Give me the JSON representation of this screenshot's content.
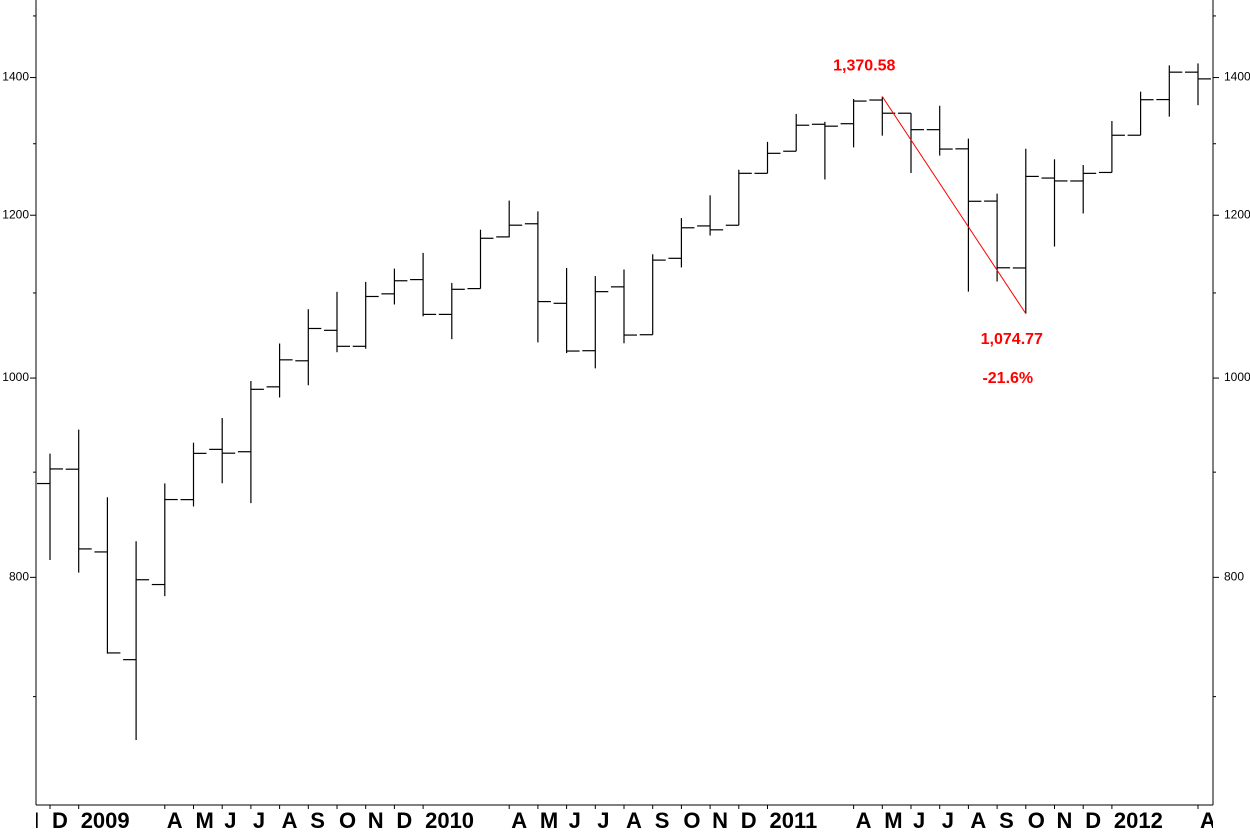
{
  "chart_data": {
    "type": "ohlc",
    "color": "#000000",
    "log_scale": true,
    "grid": false,
    "ylim": [
      620,
      1527
    ],
    "yticks": [
      800,
      1000,
      1200,
      1400
    ],
    "minor_yticks": [
      700,
      900,
      1100,
      1300,
      1500
    ],
    "x": [
      "2008-12",
      "2009-01",
      "2009-02",
      "2009-03",
      "2009-04",
      "2009-05",
      "2009-06",
      "2009-07",
      "2009-08",
      "2009-09",
      "2009-10",
      "2009-11",
      "2009-12",
      "2010-01",
      "2010-02",
      "2010-03",
      "2010-04",
      "2010-05",
      "2010-06",
      "2010-07",
      "2010-08",
      "2010-09",
      "2010-10",
      "2010-11",
      "2010-12",
      "2011-01",
      "2011-02",
      "2011-03",
      "2011-04",
      "2011-05",
      "2011-06",
      "2011-07",
      "2011-08",
      "2011-09",
      "2011-10",
      "2011-11",
      "2011-12",
      "2012-01",
      "2012-02",
      "2012-03",
      "2012-04"
    ],
    "open": [
      888.61,
      902.99,
      823.09,
      729.57,
      793.59,
      872.74,
      923.26,
      920.82,
      990.22,
      1019.52,
      1054.91,
      1036.18,
      1098.89,
      1116.56,
      1073.89,
      1105.36,
      1171.23,
      1188.58,
      1087.3,
      1031.1,
      1107.53,
      1049.72,
      1143.49,
      1185.71,
      1186.6,
      1257.62,
      1289.14,
      1328.64,
      1329.48,
      1365.21,
      1345.2,
      1320.64,
      1292.59,
      1219.12,
      1131.21,
      1251.0,
      1246.91,
      1258.86,
      1312.45,
      1365.9,
      1408.47
    ],
    "high": [
      918.85,
      943.85,
      875.01,
      832.98,
      888.7,
      930.17,
      956.23,
      996.68,
      1039.47,
      1080.15,
      1101.36,
      1113.69,
      1130.38,
      1150.45,
      1112.42,
      1180.69,
      1219.8,
      1205.13,
      1131.23,
      1120.95,
      1129.24,
      1148.67,
      1196.14,
      1227.08,
      1262.6,
      1302.67,
      1344.07,
      1332.28,
      1366.77,
      1370.58,
      1345.2,
      1356.48,
      1307.38,
      1229.29,
      1292.66,
      1277.55,
      1269.37,
      1333.47,
      1378.04,
      1419.15,
      1422.38
    ],
    "low": [
      815.69,
      804.3,
      734.52,
      666.79,
      783.32,
      866.1,
      888.86,
      869.32,
      978.51,
      991.97,
      1029.38,
      1033.38,
      1085.89,
      1071.59,
      1044.5,
      1105.36,
      1170.69,
      1040.78,
      1028.33,
      1010.91,
      1039.7,
      1049.72,
      1131.87,
      1173.0,
      1186.6,
      1257.62,
      1289.14,
      1249.05,
      1294.7,
      1311.8,
      1258.07,
      1282.86,
      1101.54,
      1114.22,
      1074.77,
      1158.66,
      1202.37,
      1258.86,
      1312.45,
      1340.03,
      1357.38
    ],
    "close": [
      903.25,
      825.88,
      735.09,
      797.87,
      872.81,
      919.14,
      919.32,
      987.48,
      1020.62,
      1057.08,
      1036.19,
      1095.63,
      1115.1,
      1073.87,
      1104.49,
      1169.43,
      1186.69,
      1089.41,
      1030.71,
      1101.6,
      1049.33,
      1141.2,
      1183.26,
      1180.55,
      1257.64,
      1286.12,
      1327.22,
      1325.83,
      1363.61,
      1345.2,
      1320.64,
      1292.28,
      1218.89,
      1131.42,
      1253.3,
      1246.96,
      1257.6,
      1312.41,
      1365.68,
      1408.47,
      1397.91
    ],
    "xticks": [
      {
        "value": "2008-11",
        "label": "N"
      },
      {
        "value": "2008-12",
        "label": "D"
      },
      {
        "value": "2009-01",
        "label": "2009"
      },
      {
        "value": "2009-04",
        "label": "A"
      },
      {
        "value": "2009-05",
        "label": "M"
      },
      {
        "value": "2009-06",
        "label": "J"
      },
      {
        "value": "2009-07",
        "label": "J"
      },
      {
        "value": "2009-08",
        "label": "A"
      },
      {
        "value": "2009-09",
        "label": "S"
      },
      {
        "value": "2009-10",
        "label": "O"
      },
      {
        "value": "2009-11",
        "label": "N"
      },
      {
        "value": "2009-12",
        "label": "D"
      },
      {
        "value": "2010-01",
        "label": "2010"
      },
      {
        "value": "2010-04",
        "label": "A"
      },
      {
        "value": "2010-05",
        "label": "M"
      },
      {
        "value": "2010-06",
        "label": "J"
      },
      {
        "value": "2010-07",
        "label": "J"
      },
      {
        "value": "2010-08",
        "label": "A"
      },
      {
        "value": "2010-09",
        "label": "S"
      },
      {
        "value": "2010-10",
        "label": "O"
      },
      {
        "value": "2010-11",
        "label": "N"
      },
      {
        "value": "2010-12",
        "label": "D"
      },
      {
        "value": "2011-01",
        "label": "2011"
      },
      {
        "value": "2011-04",
        "label": "A"
      },
      {
        "value": "2011-05",
        "label": "M"
      },
      {
        "value": "2011-06",
        "label": "J"
      },
      {
        "value": "2011-07",
        "label": "J"
      },
      {
        "value": "2011-08",
        "label": "A"
      },
      {
        "value": "2011-09",
        "label": "S"
      },
      {
        "value": "2011-10",
        "label": "O"
      },
      {
        "value": "2011-11",
        "label": "N"
      },
      {
        "value": "2011-12",
        "label": "D"
      },
      {
        "value": "2012-01",
        "label": "2012"
      },
      {
        "value": "2012-04",
        "label": "A"
      }
    ],
    "annotation": {
      "color": "#ff0000",
      "from": {
        "x": "2011-05",
        "value": 1370.58,
        "label": "1,370.58"
      },
      "to": {
        "x": "2011-10",
        "value": 1074.77,
        "label": "1,074.77"
      },
      "change": "-21.6%"
    }
  }
}
